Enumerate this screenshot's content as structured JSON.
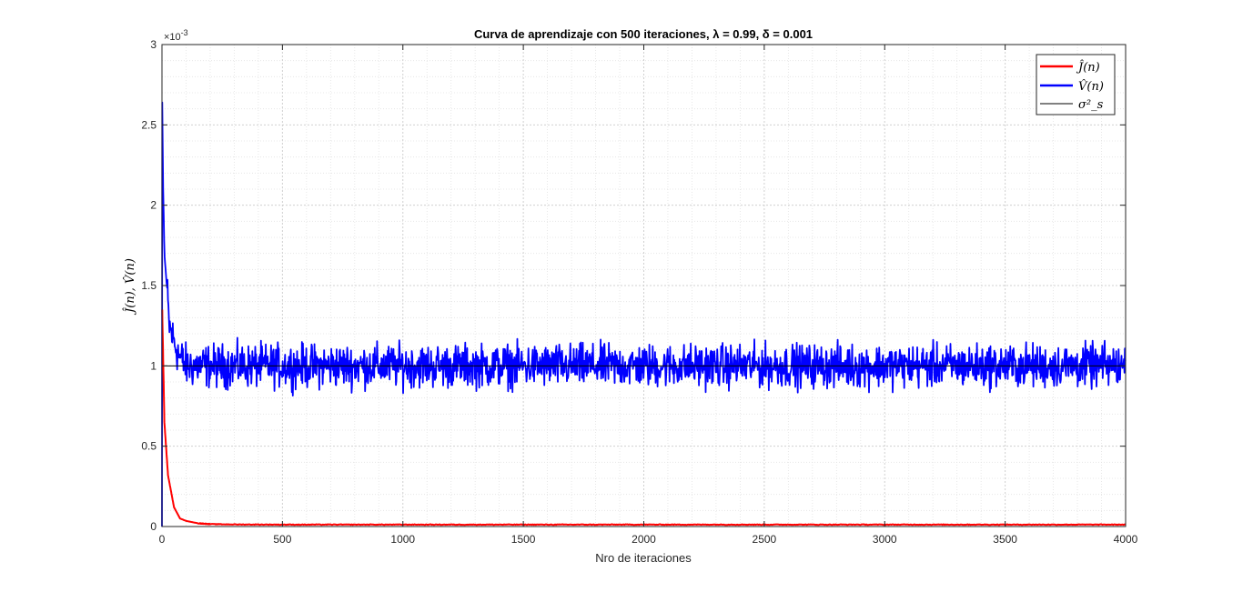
{
  "chart_data": {
    "type": "line",
    "title": "Curva de aprendizaje con 500 iteraciones, λ = 0.99, δ = 0.001",
    "xlabel": "Nro de iteraciones",
    "ylabel": "Ĵ(n), V̂(n)",
    "xlim": [
      0,
      4000
    ],
    "ylim": [
      0,
      0.003
    ],
    "y_exponent_label": "×10",
    "y_exponent_power": "-3",
    "xticks": [
      0,
      500,
      1000,
      1500,
      2000,
      2500,
      3000,
      3500,
      4000
    ],
    "xtick_labels": [
      "0",
      "500",
      "1000",
      "1500",
      "2000",
      "2500",
      "3000",
      "3500",
      "4000"
    ],
    "yticks": [
      0,
      0.0005,
      0.001,
      0.0015,
      0.002,
      0.0025,
      0.003
    ],
    "ytick_labels": [
      "0",
      "0.5",
      "1",
      "1.5",
      "2",
      "2.5",
      "3"
    ],
    "grid": true,
    "minor_grid": true,
    "legend_position": "top-right",
    "series": [
      {
        "name": "Ĵ(n)",
        "color": "#ff0000",
        "description": "exponential decay learning curve",
        "x": [
          1,
          10,
          25,
          50,
          75,
          100,
          150,
          200,
          300,
          500,
          1000,
          2000,
          3000,
          4000
        ],
        "values": [
          0.00135,
          0.00065,
          0.00032,
          0.00012,
          5e-05,
          3.5e-05,
          2e-05,
          1.5e-05,
          1.3e-05,
          1.2e-05,
          1.2e-05,
          1.2e-05,
          1.2e-05,
          1.2e-05
        ]
      },
      {
        "name": "V̂(n)",
        "color": "#0000ff",
        "description": "noisy variance estimate around 1e-3",
        "x": [
          1,
          5,
          10,
          20,
          30,
          50,
          75,
          100,
          4000
        ],
        "values": [
          0.00264,
          0.0021,
          0.0017,
          0.0015,
          0.00125,
          0.00115,
          0.00105,
          0.001,
          0.001
        ],
        "noise_range": [
          0.00081,
          0.00127
        ]
      },
      {
        "name": "σ²_s",
        "color": "#000000",
        "x": [
          0,
          4000
        ],
        "values": [
          0.001,
          0.001
        ]
      }
    ]
  }
}
